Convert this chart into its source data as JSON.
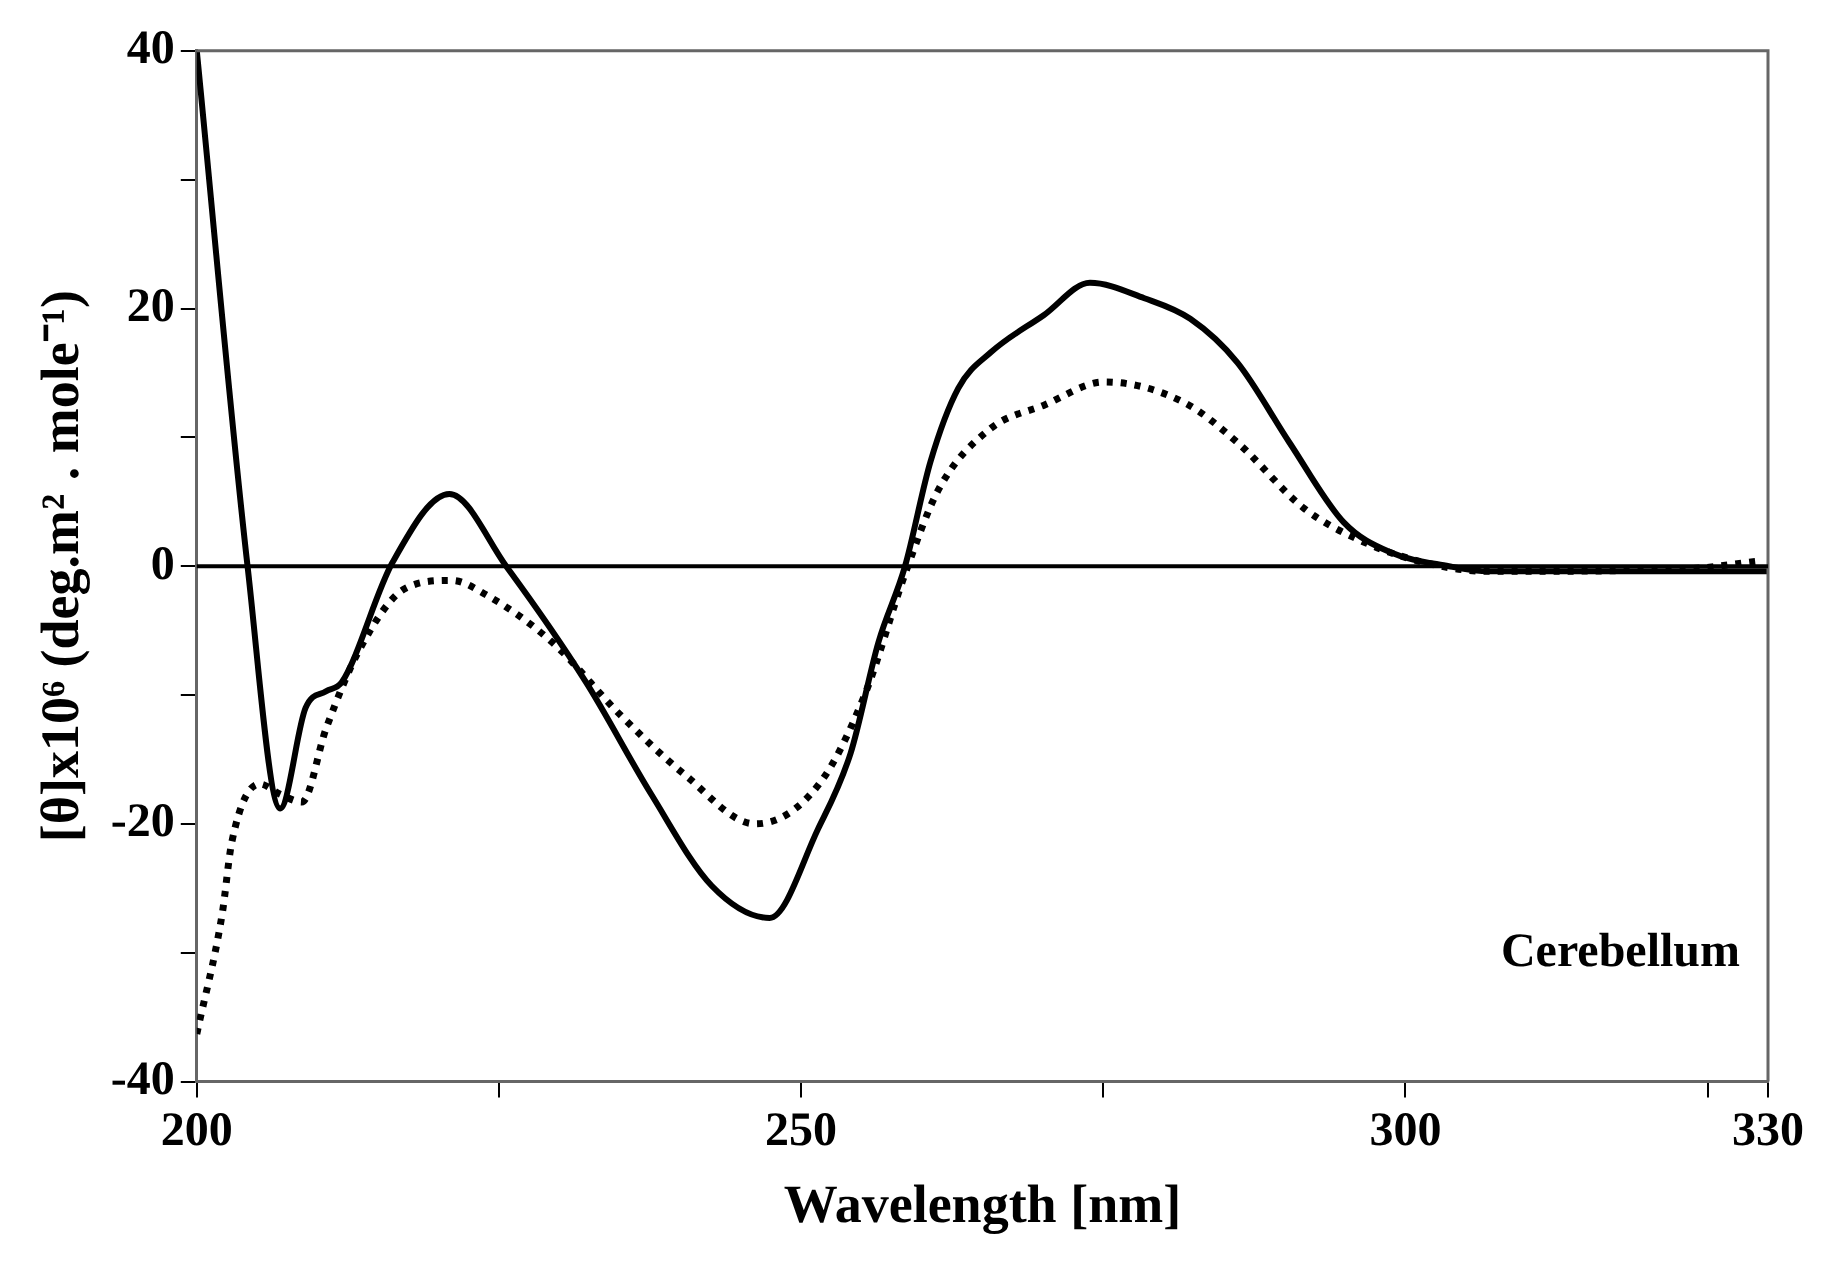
{
  "chart_data": {
    "type": "line",
    "xlabel": "Wavelength [nm]",
    "ylabel": "[θ]x10⁶ (deg.m² . mole⁻¹)",
    "annotations": [
      "Cerebellum"
    ],
    "xlim": [
      200,
      330
    ],
    "xticks": [
      200,
      {
        "value": 225,
        "label": null
      },
      250,
      {
        "value": 275,
        "label": null
      },
      300,
      {
        "value": 325,
        "label": null
      },
      330
    ],
    "ylim": [
      -40,
      40
    ],
    "yticks": [
      -40,
      {
        "value": -30,
        "label": null
      },
      -20,
      {
        "value": -10,
        "label": null
      },
      0,
      {
        "value": 10,
        "label": null
      },
      20,
      {
        "value": 30,
        "label": null
      },
      40
    ],
    "grid": false,
    "legend": false,
    "marker": "none",
    "ref_lines": [
      {
        "axis": "y",
        "value": 0,
        "color": "#000000",
        "line_style": "solid"
      }
    ],
    "series": [
      {
        "color": "#000000",
        "line_style": "solid",
        "x": [
          200,
          204.2,
          206.9,
          209,
          210.7,
          212,
          216.2,
          220.9,
          225.6,
          232.2,
          237.6,
          242.6,
          247.4,
          251.4,
          254.1,
          256.4,
          258.6,
          260.7,
          263,
          265.7,
          270.1,
          273.9,
          278.4,
          282.2,
          286.1,
          290.4,
          294.9,
          298.7,
          303.6,
          306.9,
          329.2,
          330
        ],
        "values": [
          40,
          0,
          -18.8,
          -11,
          -9.7,
          -9,
          0.3,
          5.6,
          0,
          -9,
          -17.7,
          -24.8,
          -27.3,
          -20.4,
          -14.5,
          -5.9,
          0,
          8.1,
          13.8,
          16.6,
          19.5,
          22,
          20.8,
          19.2,
          15.8,
          9.6,
          3.4,
          1.1,
          0,
          -0.4,
          -0.4,
          -0.4
        ]
      },
      {
        "color": "#000000",
        "line_style": "dotted",
        "x": [
          200,
          202.1,
          202.9,
          205.2,
          206.9,
          208.7,
          210.7,
          213.5,
          217.3,
          221.1,
          223.9,
          229.4,
          235,
          240.4,
          246.2,
          251.5,
          255.3,
          258.6,
          261.4,
          265.7,
          270.1,
          275.1,
          281.7,
          286.1,
          291.6,
          296.5,
          301.5,
          306.9,
          323.4,
          329.2
        ],
        "values": [
          -36.3,
          -27,
          -21.4,
          -16.9,
          -17.7,
          -18.3,
          -12.6,
          -6.4,
          -1.7,
          -1.1,
          -2.2,
          -5.9,
          -11.5,
          -16.2,
          -20,
          -16.9,
          -9.9,
          -0.6,
          6,
          10.7,
          12.5,
          14.3,
          12.7,
          9.6,
          4.5,
          1.9,
          0.3,
          -0.4,
          -0.2,
          0.4
        ]
      }
    ]
  }
}
